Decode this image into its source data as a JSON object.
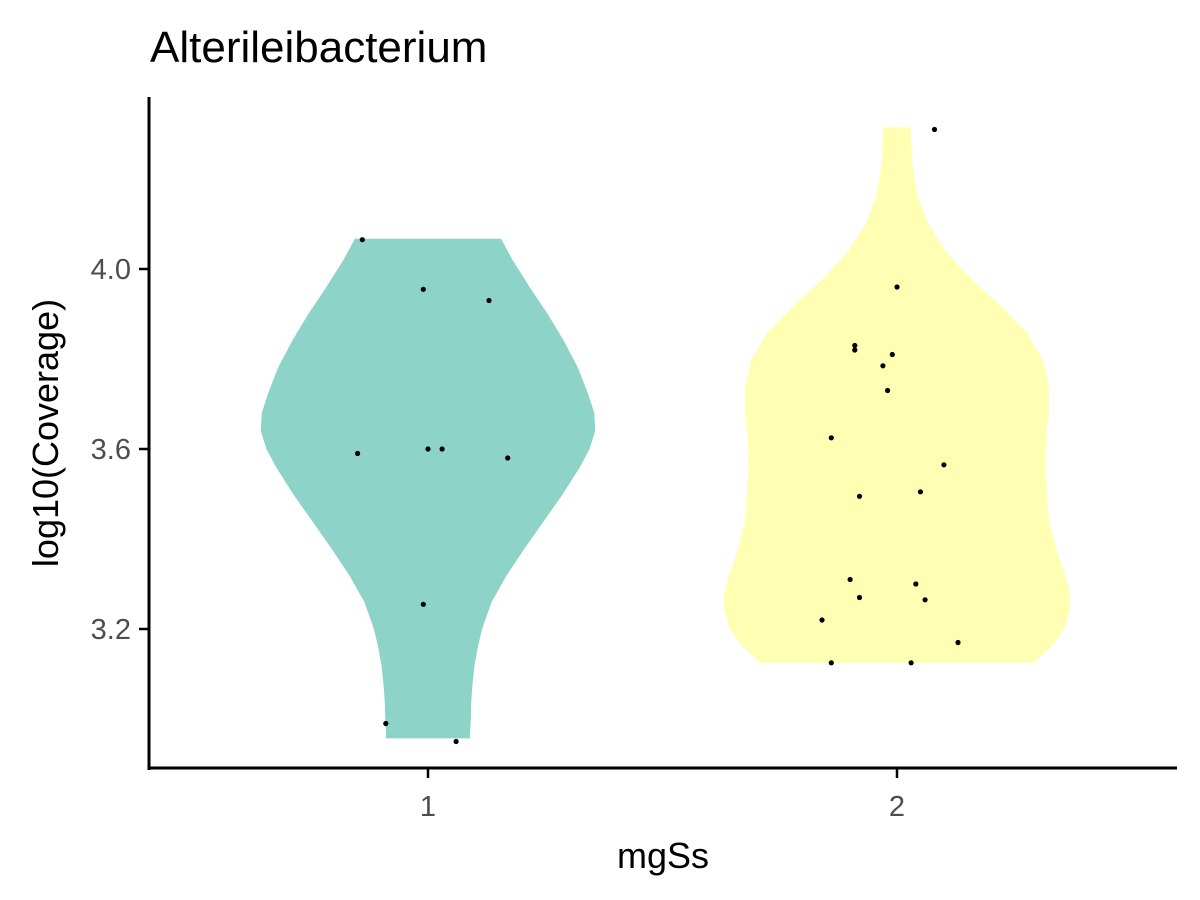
{
  "chart_data": {
    "type": "violin",
    "title": "Alterileibacterium",
    "xlabel": "mgSs",
    "ylabel": "log10(Coverage)",
    "categories": [
      "1",
      "2"
    ],
    "yticks": [
      "3.2",
      "3.6",
      "4.0"
    ],
    "ytick_values": [
      3.2,
      3.6,
      4.0
    ],
    "ylim": [
      2.9,
      4.33
    ],
    "grid": false,
    "legend": "none",
    "colors": [
      "#8DD3C7",
      "#FFFFB3"
    ],
    "groups": [
      {
        "category": "1",
        "color": "#8DD3C7",
        "ymin": 2.957,
        "ymax": 4.067,
        "density": [
          [
            2.957,
            0.22
          ],
          [
            3.0,
            0.225
          ],
          [
            3.04,
            0.228
          ],
          [
            3.08,
            0.235
          ],
          [
            3.12,
            0.245
          ],
          [
            3.16,
            0.262
          ],
          [
            3.2,
            0.285
          ],
          [
            3.26,
            0.335
          ],
          [
            3.32,
            0.415
          ],
          [
            3.38,
            0.51
          ],
          [
            3.44,
            0.61
          ],
          [
            3.5,
            0.71
          ],
          [
            3.56,
            0.8
          ],
          [
            3.6,
            0.85
          ],
          [
            3.64,
            0.88
          ],
          [
            3.68,
            0.875
          ],
          [
            3.72,
            0.845
          ],
          [
            3.78,
            0.79
          ],
          [
            3.84,
            0.715
          ],
          [
            3.9,
            0.63
          ],
          [
            3.96,
            0.535
          ],
          [
            4.02,
            0.445
          ],
          [
            4.067,
            0.385
          ]
        ],
        "points": [
          {
            "x": 0.86,
            "y": 4.065
          },
          {
            "x": 0.99,
            "y": 3.955
          },
          {
            "x": 1.13,
            "y": 3.93
          },
          {
            "x": 0.85,
            "y": 3.59
          },
          {
            "x": 1.0,
            "y": 3.6
          },
          {
            "x": 1.03,
            "y": 3.6
          },
          {
            "x": 1.17,
            "y": 3.58
          },
          {
            "x": 0.99,
            "y": 3.255
          },
          {
            "x": 0.91,
            "y": 2.99
          },
          {
            "x": 1.06,
            "y": 2.95
          }
        ]
      },
      {
        "category": "2",
        "color": "#FFFFB3",
        "ymin": 3.125,
        "ymax": 4.315,
        "density": [
          [
            3.125,
            0.72
          ],
          [
            3.16,
            0.81
          ],
          [
            3.2,
            0.88
          ],
          [
            3.24,
            0.91
          ],
          [
            3.28,
            0.91
          ],
          [
            3.32,
            0.885
          ],
          [
            3.38,
            0.835
          ],
          [
            3.44,
            0.8
          ],
          [
            3.5,
            0.79
          ],
          [
            3.56,
            0.78
          ],
          [
            3.62,
            0.785
          ],
          [
            3.68,
            0.8
          ],
          [
            3.74,
            0.8
          ],
          [
            3.8,
            0.765
          ],
          [
            3.86,
            0.68
          ],
          [
            3.92,
            0.54
          ],
          [
            3.98,
            0.385
          ],
          [
            4.04,
            0.255
          ],
          [
            4.1,
            0.165
          ],
          [
            4.16,
            0.11
          ],
          [
            4.22,
            0.085
          ],
          [
            4.28,
            0.075
          ],
          [
            4.315,
            0.072
          ]
        ],
        "points": [
          {
            "x": 2.08,
            "y": 4.31
          },
          {
            "x": 2.0,
            "y": 3.96
          },
          {
            "x": 1.91,
            "y": 3.83
          },
          {
            "x": 1.91,
            "y": 3.82
          },
          {
            "x": 1.99,
            "y": 3.81
          },
          {
            "x": 1.97,
            "y": 3.785
          },
          {
            "x": 1.98,
            "y": 3.73
          },
          {
            "x": 1.86,
            "y": 3.625
          },
          {
            "x": 2.1,
            "y": 3.565
          },
          {
            "x": 2.05,
            "y": 3.505
          },
          {
            "x": 1.92,
            "y": 3.495
          },
          {
            "x": 1.9,
            "y": 3.31
          },
          {
            "x": 2.04,
            "y": 3.3
          },
          {
            "x": 1.92,
            "y": 3.27
          },
          {
            "x": 2.06,
            "y": 3.265
          },
          {
            "x": 1.84,
            "y": 3.22
          },
          {
            "x": 2.13,
            "y": 3.17
          },
          {
            "x": 1.86,
            "y": 3.125
          },
          {
            "x": 2.03,
            "y": 3.125
          }
        ]
      }
    ]
  }
}
